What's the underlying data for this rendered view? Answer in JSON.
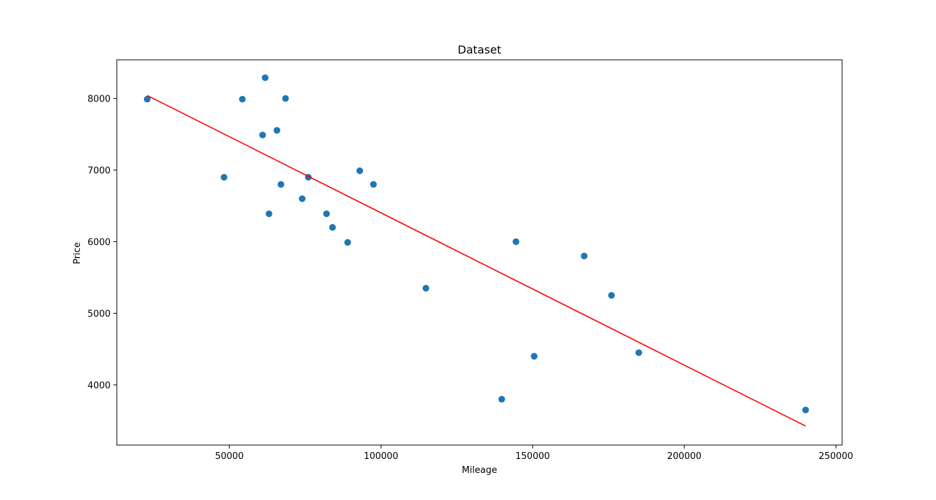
{
  "chart_data": {
    "type": "scatter",
    "title": "Dataset",
    "xlabel": "Mileage",
    "ylabel": "Price",
    "xlim": [
      12880,
      252050
    ],
    "ylim": [
      3160,
      8540
    ],
    "xticks": [
      50000,
      100000,
      150000,
      200000,
      250000
    ],
    "yticks": [
      4000,
      5000,
      6000,
      7000,
      8000
    ],
    "grid": false,
    "colors": {
      "points": "#1f77b4",
      "fit": "#ff0000"
    },
    "series": [
      {
        "type": "scatter",
        "x": [
          22899,
          48235,
          54276,
          60949,
          61789,
          63060,
          65674,
          67000,
          68500,
          74000,
          76025,
          82029,
          84000,
          89000,
          93000,
          97500,
          114800,
          139800,
          144500,
          150500,
          167000,
          176000,
          185000,
          240000
        ],
        "y": [
          7990,
          6900,
          7990,
          7490,
          8290,
          6390,
          7555,
          6800,
          8000,
          6600,
          6900,
          6390,
          6200,
          5990,
          6990,
          6800,
          5350,
          3800,
          6000,
          4400,
          5800,
          5250,
          4450,
          3650
        ]
      },
      {
        "type": "line",
        "x": [
          22899,
          240000
        ],
        "y": [
          8042,
          3426
        ]
      }
    ]
  }
}
